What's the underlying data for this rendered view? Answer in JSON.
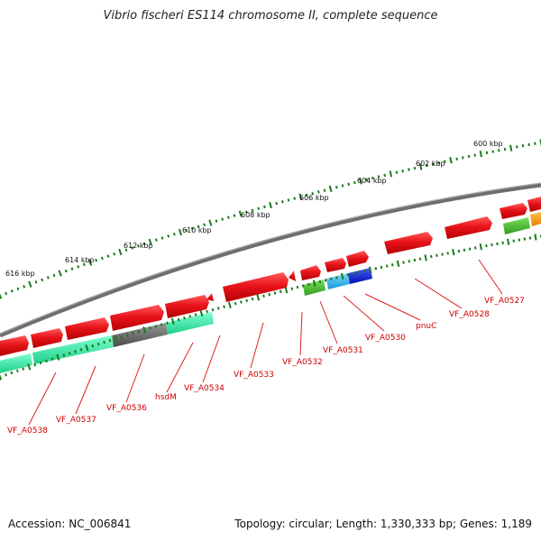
{
  "title": "Vibrio fischeri ES114 chromosome II, complete sequence",
  "accession_text": "Accession: NC_006841",
  "summary_text": "Topology: circular; Length: 1,330,333 bp; Genes: 1,189",
  "colors": {
    "backbone": "#7a7a7a",
    "cds": "#e8141b",
    "label": "#cc0000",
    "tick": "#1a7a1a",
    "teal": "#2ee8a0",
    "gray_feature": "#666666",
    "green_feature": "#44bb33",
    "cyan_feature": "#22b8f0",
    "blue_feature": "#0a22dd",
    "orange_feature": "#ff9900"
  },
  "scale_labels": [
    "616 kbp",
    "614 kbp",
    "612 kbp",
    "610 kbp",
    "608 kbp",
    "606 kbp",
    "604 kbp",
    "602 kbp",
    "600 kbp"
  ],
  "gene_labels": [
    "VF_A0538",
    "VF_A0537",
    "VF_A0536",
    "hsdM",
    "VF_A0534",
    "VF_A0533",
    "VF_A0532",
    "VF_A0531",
    "VF_A0530",
    "pnuC",
    "VF_A0528",
    "VF_A0527"
  ]
}
